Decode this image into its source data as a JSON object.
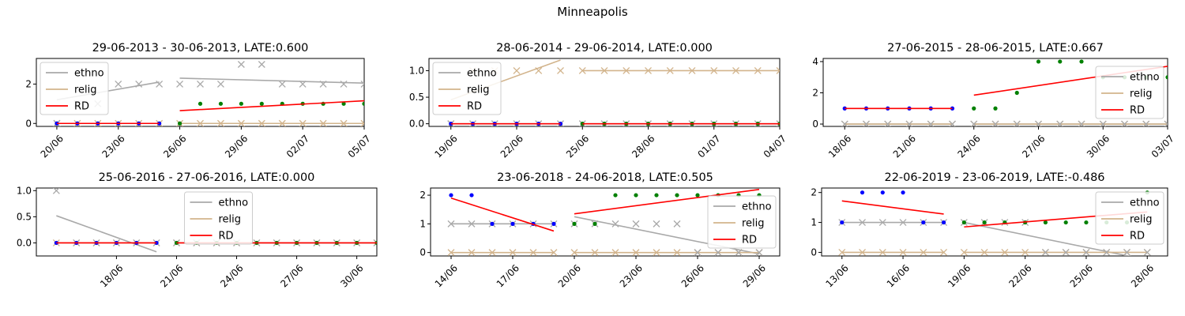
{
  "suptitle": "Minneapolis",
  "colors": {
    "ethno": "#a9a9a9",
    "relig": "#d2b48c",
    "rd": "#ff0000",
    "green": "#008000",
    "blue": "#0000ff"
  },
  "legend": [
    "ethno",
    "relig",
    "RD"
  ],
  "chart_data": [
    {
      "type": "line",
      "title": "29-06-2013 - 30-06-2013, LATE:0.600",
      "xticks": [
        "20/06",
        "23/06",
        "26/06",
        "29/06",
        "02/07",
        "05/07"
      ],
      "yticks": [
        "0",
        "2"
      ],
      "ylim": [
        -0.15,
        3.3
      ],
      "xrange": [
        -1,
        15
      ],
      "legend_position": "upper left",
      "x": [
        0,
        1,
        2,
        3,
        4,
        5,
        6,
        7,
        8,
        9,
        10,
        11,
        12,
        13,
        14,
        15
      ],
      "cutoff": 5.5,
      "ethno": [
        0,
        1,
        1,
        2,
        2,
        2,
        2,
        2,
        2,
        3,
        3,
        2,
        2,
        2,
        2,
        2
      ],
      "relig": [
        0,
        0,
        0,
        0,
        0,
        0,
        0,
        0,
        0,
        0,
        0,
        0,
        0,
        0,
        0,
        0
      ],
      "dots": [
        0,
        0,
        0,
        0,
        0,
        0,
        0,
        1,
        1,
        1,
        1,
        1,
        1,
        1,
        1,
        1
      ],
      "ethno_fit": [
        [
          0,
          1.2
        ],
        [
          5,
          2.1
        ],
        [
          6,
          2.3
        ],
        [
          15,
          2.05
        ]
      ],
      "relig_fit": [
        [
          0,
          0
        ],
        [
          5,
          0
        ],
        [
          6,
          0
        ],
        [
          15,
          0
        ]
      ],
      "rd_fit": [
        [
          0,
          0
        ],
        [
          5,
          0
        ],
        [
          6,
          0.65
        ],
        [
          15,
          1.15
        ]
      ]
    },
    {
      "type": "line",
      "title": "28-06-2014 - 29-06-2014, LATE:0.000",
      "xticks": [
        "19/06",
        "22/06",
        "25/06",
        "28/06",
        "01/07",
        "04/07"
      ],
      "yticks": [
        "0.0",
        "0.5",
        "1.0"
      ],
      "ylim": [
        -0.05,
        1.23
      ],
      "xrange": [
        -1,
        15
      ],
      "legend_position": "upper left",
      "x": [
        0,
        1,
        2,
        3,
        4,
        5,
        6,
        7,
        8,
        9,
        10,
        11,
        12,
        13,
        14,
        15
      ],
      "cutoff": 5.5,
      "ethno": [
        0,
        0,
        0,
        0,
        0,
        0,
        0,
        0,
        0,
        0,
        0,
        0,
        0,
        0,
        0,
        0
      ],
      "relig": [
        0,
        1,
        1,
        1,
        1,
        1,
        1,
        1,
        1,
        1,
        1,
        1,
        1,
        1,
        1,
        1
      ],
      "dots": [
        0,
        0,
        0,
        0,
        0,
        0,
        0,
        0,
        0,
        0,
        0,
        0,
        0,
        0,
        0,
        0
      ],
      "ethno_fit": [
        [
          0,
          0
        ],
        [
          5,
          0
        ],
        [
          6,
          0
        ],
        [
          15,
          0
        ]
      ],
      "relig_fit": [
        [
          0,
          0.45
        ],
        [
          5,
          1.2
        ],
        [
          6,
          1
        ],
        [
          15,
          1
        ]
      ],
      "rd_fit": [
        [
          0,
          0
        ],
        [
          5,
          0
        ],
        [
          6,
          0
        ],
        [
          15,
          0
        ]
      ]
    },
    {
      "type": "line",
      "title": "27-06-2015 - 28-06-2015, LATE:0.667",
      "xticks": [
        "18/06",
        "21/06",
        "24/06",
        "27/06",
        "30/06",
        "03/07"
      ],
      "yticks": [
        "0",
        "2",
        "4"
      ],
      "ylim": [
        -0.15,
        4.2
      ],
      "xrange": [
        -1,
        15
      ],
      "legend_position": "center right",
      "x": [
        0,
        1,
        2,
        3,
        4,
        5,
        6,
        7,
        8,
        9,
        10,
        11,
        12,
        13,
        14,
        15
      ],
      "cutoff": 5.5,
      "ethno": [
        0,
        0,
        0,
        0,
        0,
        0,
        0,
        0,
        0,
        0,
        0,
        0,
        0,
        0,
        0,
        0
      ],
      "relig": [
        0,
        0,
        0,
        0,
        0,
        0,
        0,
        0,
        0,
        0,
        0,
        0,
        0,
        0,
        0,
        0
      ],
      "dots": [
        1,
        1,
        1,
        1,
        1,
        1,
        1,
        1,
        2,
        4,
        4,
        4,
        3,
        3,
        3,
        3
      ],
      "ethno_fit": [
        [
          0,
          0
        ],
        [
          5,
          0
        ],
        [
          6,
          0
        ],
        [
          15,
          0
        ]
      ],
      "relig_fit": [
        [
          0,
          0
        ],
        [
          5,
          0
        ],
        [
          6,
          0
        ],
        [
          15,
          0
        ]
      ],
      "rd_fit": [
        [
          0,
          1
        ],
        [
          5,
          1
        ],
        [
          6,
          1.85
        ],
        [
          15,
          3.7
        ]
      ]
    },
    {
      "type": "line",
      "title": "25-06-2016 - 27-06-2016, LATE:0.000",
      "xticks": [
        "18/06",
        "21/06",
        "24/06",
        "27/06",
        "30/06"
      ],
      "yticks": [
        "0.0",
        "0.5",
        "1.0"
      ],
      "ylim": [
        -0.25,
        1.05
      ],
      "xrange": [
        -1,
        16
      ],
      "legend_position": "upper center",
      "x": [
        0,
        1,
        2,
        3,
        4,
        5,
        6,
        7,
        8,
        9,
        10,
        11,
        12,
        13,
        14,
        15,
        16
      ],
      "cutoff": 5.75,
      "ethno": [
        1,
        0,
        0,
        0,
        0,
        0,
        0,
        0,
        0,
        0,
        0,
        0,
        0,
        0,
        0,
        0,
        0
      ],
      "relig": [
        0,
        0,
        0,
        0,
        0,
        0,
        0,
        0,
        0,
        0,
        0,
        0,
        0,
        0,
        0,
        0,
        0
      ],
      "dots": [
        0,
        0,
        0,
        0,
        0,
        0,
        0,
        0,
        0,
        0,
        0,
        0,
        0,
        0,
        0,
        0,
        0
      ],
      "ethno_fit": [
        [
          0,
          0.52
        ],
        [
          5,
          -0.17
        ],
        [
          6,
          0
        ],
        [
          16,
          0
        ]
      ],
      "relig_fit": [
        [
          0,
          0
        ],
        [
          5,
          0
        ],
        [
          6,
          0
        ],
        [
          16,
          0
        ]
      ],
      "rd_fit": [
        [
          0,
          0
        ],
        [
          5,
          0
        ],
        [
          6,
          0
        ],
        [
          16,
          0
        ]
      ]
    },
    {
      "type": "line",
      "title": "23-06-2018 - 24-06-2018, LATE:0.505",
      "xticks": [
        "14/06",
        "17/06",
        "20/06",
        "23/06",
        "26/06",
        "29/06"
      ],
      "yticks": [
        "0",
        "1",
        "2"
      ],
      "ylim": [
        -0.12,
        2.25
      ],
      "xrange": [
        -1,
        16
      ],
      "legend_position": "center right",
      "x": [
        0,
        1,
        2,
        3,
        4,
        5,
        6,
        7,
        8,
        9,
        10,
        11,
        12,
        13,
        14,
        15
      ],
      "cutoff": 5.5,
      "ethno": [
        1,
        1,
        1,
        1,
        1,
        1,
        1,
        1,
        1,
        1,
        1,
        1,
        0,
        0,
        0,
        0
      ],
      "relig": [
        0,
        0,
        0,
        0,
        0,
        0,
        0,
        0,
        0,
        0,
        0,
        0,
        0,
        0,
        0,
        0
      ],
      "dots": [
        2,
        2,
        1,
        1,
        1,
        1,
        1,
        1,
        2,
        2,
        2,
        2,
        2,
        2,
        2,
        2
      ],
      "ethno_fit": [
        [
          0,
          1
        ],
        [
          5,
          1
        ],
        [
          6,
          1.25
        ],
        [
          15,
          -0.05
        ]
      ],
      "relig_fit": [
        [
          0,
          0
        ],
        [
          5,
          0
        ],
        [
          6,
          0
        ],
        [
          15,
          0
        ]
      ],
      "rd_fit": [
        [
          0,
          1.9
        ],
        [
          5,
          0.75
        ],
        [
          6,
          1.35
        ],
        [
          15,
          2.2
        ]
      ]
    },
    {
      "type": "line",
      "title": "22-06-2019 - 23-06-2019, LATE:-0.486",
      "xticks": [
        "13/06",
        "16/06",
        "19/06",
        "22/06",
        "25/06",
        "28/06"
      ],
      "yticks": [
        "0",
        "1",
        "2"
      ],
      "ylim": [
        -0.12,
        2.15
      ],
      "xrange": [
        -1,
        16
      ],
      "legend_position": "upper right",
      "x": [
        0,
        1,
        2,
        3,
        4,
        5,
        6,
        7,
        8,
        9,
        10,
        11,
        12,
        13,
        14,
        15
      ],
      "cutoff": 5.5,
      "ethno": [
        1,
        1,
        1,
        1,
        1,
        1,
        1,
        1,
        1,
        1,
        0,
        0,
        0,
        0,
        0,
        0
      ],
      "relig": [
        0,
        0,
        0,
        0,
        0,
        0,
        0,
        0,
        0,
        0,
        0,
        0,
        0,
        0,
        0,
        0
      ],
      "dots": [
        1,
        2,
        2,
        2,
        1,
        1,
        1,
        1,
        1,
        1,
        1,
        1,
        1,
        1,
        1,
        2
      ],
      "ethno_fit": [
        [
          0,
          1
        ],
        [
          5,
          1
        ],
        [
          6,
          1
        ],
        [
          15,
          -0.25
        ]
      ],
      "relig_fit": [
        [
          0,
          0
        ],
        [
          5,
          0
        ],
        [
          6,
          0
        ],
        [
          15,
          0
        ]
      ],
      "rd_fit": [
        [
          0,
          1.72
        ],
        [
          5,
          1.28
        ],
        [
          6,
          0.85
        ],
        [
          15,
          1.35
        ]
      ]
    }
  ]
}
